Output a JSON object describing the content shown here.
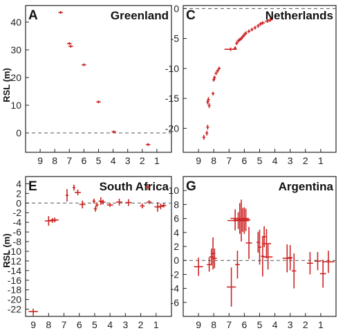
{
  "chart_data": [
    {
      "type": "scatter",
      "letter": "A",
      "title": "Greenland",
      "ylabel": "RSL (m)",
      "xlim": [
        10,
        0
      ],
      "ylim": [
        -7,
        46
      ],
      "xticks": [
        9,
        8,
        7,
        6,
        5,
        4,
        3,
        2,
        1
      ],
      "xtick_labels": [
        "9",
        "8",
        "7",
        "6",
        "5",
        "4",
        "3",
        "2",
        "1"
      ],
      "yticks": [
        0,
        10,
        20,
        30,
        40
      ],
      "ytick_labels": [
        "0",
        "10",
        "20",
        "30",
        "40"
      ],
      "show_xlabels": true,
      "zero_line": true,
      "points": [
        {
          "x": 7.6,
          "y": 43.5,
          "dx": 0.15,
          "dy": 0.3
        },
        {
          "x": 7.0,
          "y": 32.3,
          "dx": 0.15,
          "dy": 0.5
        },
        {
          "x": 6.9,
          "y": 31.3,
          "dx": 0.15,
          "dy": 0.5
        },
        {
          "x": 6.0,
          "y": 24.6,
          "dx": 0.15,
          "dy": 0.4
        },
        {
          "x": 5.0,
          "y": 11.2,
          "dx": 0.15,
          "dy": 0.4
        },
        {
          "x": 3.95,
          "y": 0.4,
          "dx": 0.15,
          "dy": 0.4
        },
        {
          "x": 1.6,
          "y": -4.2,
          "dx": 0.15,
          "dy": 0.4
        }
      ]
    },
    {
      "type": "scatter",
      "letter": "C",
      "title": "Netherlands",
      "ylabel": "",
      "xlim": [
        10,
        0
      ],
      "ylim": [
        -24,
        0.5
      ],
      "xticks": [
        9,
        8,
        7,
        6,
        5,
        4,
        3,
        2,
        1
      ],
      "xtick_labels": [
        "9",
        "8",
        "7",
        "6",
        "5",
        "4",
        "3",
        "2",
        "1"
      ],
      "yticks": [
        0,
        -5,
        -10,
        -15,
        -20
      ],
      "ytick_labels": [
        "0",
        "-5",
        "-10",
        "-15",
        "-20"
      ],
      "show_xlabels": true,
      "zero_line": true,
      "points": [
        {
          "x": 8.65,
          "y": -21.5,
          "dx": 0.1,
          "dy": 0.4
        },
        {
          "x": 8.45,
          "y": -20.8,
          "dx": 0.08,
          "dy": 0.4
        },
        {
          "x": 8.4,
          "y": -19.8,
          "dx": 0.08,
          "dy": 0.4
        },
        {
          "x": 8.3,
          "y": -16.2,
          "dx": 0.08,
          "dy": 0.4
        },
        {
          "x": 8.35,
          "y": -15.2,
          "dx": 0.08,
          "dy": 0.4
        },
        {
          "x": 8.4,
          "y": -15.6,
          "dx": 0.08,
          "dy": 0.4
        },
        {
          "x": 8.05,
          "y": -14.2,
          "dx": 0.08,
          "dy": 0.3
        },
        {
          "x": 8.0,
          "y": -11.9,
          "dx": 0.08,
          "dy": 0.3
        },
        {
          "x": 7.95,
          "y": -11.5,
          "dx": 0.08,
          "dy": 0.3
        },
        {
          "x": 7.85,
          "y": -10.8,
          "dx": 0.08,
          "dy": 0.3
        },
        {
          "x": 7.75,
          "y": -10.4,
          "dx": 0.08,
          "dy": 0.3
        },
        {
          "x": 7.65,
          "y": -10.0,
          "dx": 0.08,
          "dy": 0.3
        },
        {
          "x": 6.9,
          "y": -6.8,
          "dx": 0.4,
          "dy": 0.3
        },
        {
          "x": 6.6,
          "y": -6.6,
          "dx": 0.08,
          "dy": 0.3
        },
        {
          "x": 6.5,
          "y": -5.8,
          "dx": 0.1,
          "dy": 0.3
        },
        {
          "x": 6.4,
          "y": -5.4,
          "dx": 0.1,
          "dy": 0.3
        },
        {
          "x": 6.3,
          "y": -5.2,
          "dx": 0.1,
          "dy": 0.3
        },
        {
          "x": 6.2,
          "y": -5.0,
          "dx": 0.1,
          "dy": 0.3
        },
        {
          "x": 6.1,
          "y": -4.7,
          "dx": 0.1,
          "dy": 0.3
        },
        {
          "x": 6.0,
          "y": -4.4,
          "dx": 0.1,
          "dy": 0.3
        },
        {
          "x": 5.9,
          "y": -4.1,
          "dx": 0.1,
          "dy": 0.3
        },
        {
          "x": 5.7,
          "y": -3.8,
          "dx": 0.1,
          "dy": 0.3
        },
        {
          "x": 5.5,
          "y": -3.5,
          "dx": 0.1,
          "dy": 0.3
        },
        {
          "x": 5.3,
          "y": -3.2,
          "dx": 0.1,
          "dy": 0.3
        },
        {
          "x": 5.1,
          "y": -2.9,
          "dx": 0.1,
          "dy": 0.3
        },
        {
          "x": 4.95,
          "y": -2.6,
          "dx": 0.1,
          "dy": 0.3
        },
        {
          "x": 4.8,
          "y": -2.4,
          "dx": 0.15,
          "dy": 0.3
        },
        {
          "x": 4.5,
          "y": -2.1,
          "dx": 0.15,
          "dy": 0.3
        },
        {
          "x": 4.3,
          "y": -1.9,
          "dx": 0.15,
          "dy": 0.3
        }
      ]
    },
    {
      "type": "scatter",
      "letter": "E",
      "title": "South Africa",
      "ylabel": "RSL (m)",
      "xlim": [
        9.5,
        0
      ],
      "ylim": [
        -23.5,
        5.5
      ],
      "xticks": [
        9,
        8,
        7,
        6,
        5,
        4,
        3,
        2,
        1
      ],
      "xtick_labels": [
        "9",
        "8",
        "7",
        "6",
        "5",
        "4",
        "3",
        "2",
        "1"
      ],
      "yticks": [
        4,
        2,
        0,
        -2,
        -4,
        -6,
        -8,
        -10,
        -12,
        -14,
        -16,
        -18,
        -20,
        -22
      ],
      "ytick_labels": [
        "4",
        "2",
        "0",
        "-2",
        "-4",
        "-6",
        "-8",
        "-10",
        "-12",
        "-14",
        "-16",
        "-18",
        "-20",
        "-22"
      ],
      "show_xlabels": true,
      "zero_line": true,
      "points": [
        {
          "x": 9.0,
          "y": -22.5,
          "dx": 0.3,
          "dy": 0.6
        },
        {
          "x": 8.0,
          "y": -3.7,
          "dx": 0.25,
          "dy": 1.0
        },
        {
          "x": 7.75,
          "y": -3.6,
          "dx": 0.25,
          "dy": 0.5
        },
        {
          "x": 7.6,
          "y": -3.5,
          "dx": 0.25,
          "dy": 0.5
        },
        {
          "x": 6.8,
          "y": 1.6,
          "dx": 0.08,
          "dy": 1.3
        },
        {
          "x": 6.35,
          "y": 3.2,
          "dx": 0.08,
          "dy": 0.6
        },
        {
          "x": 6.1,
          "y": 2.2,
          "dx": 0.2,
          "dy": 0.6
        },
        {
          "x": 5.8,
          "y": -0.3,
          "dx": 0.2,
          "dy": 0.8
        },
        {
          "x": 5.05,
          "y": 0.4,
          "dx": 0.1,
          "dy": 0.5
        },
        {
          "x": 4.95,
          "y": -1.2,
          "dx": 0.1,
          "dy": 0.6
        },
        {
          "x": 4.85,
          "y": -0.4,
          "dx": 0.1,
          "dy": 0.5
        },
        {
          "x": 4.6,
          "y": 0.4,
          "dx": 0.15,
          "dy": 0.8
        },
        {
          "x": 4.45,
          "y": 0.2,
          "dx": 0.15,
          "dy": 0.5
        },
        {
          "x": 4.0,
          "y": -0.4,
          "dx": 0.2,
          "dy": 0.4
        },
        {
          "x": 3.4,
          "y": 0.2,
          "dx": 0.2,
          "dy": 0.7
        },
        {
          "x": 2.8,
          "y": 0.1,
          "dx": 0.2,
          "dy": 0.7
        },
        {
          "x": 1.9,
          "y": -0.6,
          "dx": 0.15,
          "dy": 0.5
        },
        {
          "x": 1.55,
          "y": 3.3,
          "dx": 0.15,
          "dy": 0.6
        },
        {
          "x": 1.45,
          "y": 0.2,
          "dx": 0.15,
          "dy": 0.4
        },
        {
          "x": 0.9,
          "y": -0.8,
          "dx": 0.2,
          "dy": 1.0
        },
        {
          "x": 0.7,
          "y": -0.7,
          "dx": 0.2,
          "dy": 0.6
        },
        {
          "x": 0.5,
          "y": -0.5,
          "dx": 0.15,
          "dy": 0.4
        }
      ]
    },
    {
      "type": "scatter",
      "letter": "G",
      "title": "Argentina",
      "ylabel": "",
      "xlim": [
        10,
        0
      ],
      "ylim": [
        -8,
        12
      ],
      "xticks": [
        9,
        8,
        7,
        6,
        5,
        4,
        3,
        2,
        1
      ],
      "xtick_labels": [
        "9",
        "8",
        "7",
        "6",
        "5",
        "4",
        "3",
        "2",
        "1"
      ],
      "yticks": [
        10,
        8,
        6,
        4,
        2,
        0,
        -2,
        -4,
        -6
      ],
      "ytick_labels": [
        "10",
        "8",
        "6",
        "4",
        "2",
        "0",
        "-2",
        "-4",
        "-6"
      ],
      "show_xlabels": true,
      "zero_line": true,
      "points": [
        {
          "x": 9.0,
          "y": -0.9,
          "dx": 0.3,
          "dy": 1.3
        },
        {
          "x": 8.3,
          "y": -0.6,
          "dx": 0.15,
          "dy": 1.0
        },
        {
          "x": 8.15,
          "y": 0.5,
          "dx": 0.15,
          "dy": 1.2
        },
        {
          "x": 8.05,
          "y": 1.0,
          "dx": 0.15,
          "dy": 2.3
        },
        {
          "x": 7.95,
          "y": 0.3,
          "dx": 0.15,
          "dy": 1.4
        },
        {
          "x": 6.85,
          "y": -3.8,
          "dx": 0.3,
          "dy": 2.8
        },
        {
          "x": 6.6,
          "y": 5.8,
          "dx": 0.1,
          "dy": 1.5
        },
        {
          "x": 6.4,
          "y": 5.7,
          "dx": 0.7,
          "dy": 1.2
        },
        {
          "x": 6.3,
          "y": 6.0,
          "dx": 0.6,
          "dy": 2.2
        },
        {
          "x": 6.2,
          "y": 5.7,
          "dx": 0.5,
          "dy": 3.0
        },
        {
          "x": 6.1,
          "y": 5.8,
          "dx": 0.4,
          "dy": 1.7
        },
        {
          "x": 6.0,
          "y": 5.7,
          "dx": 0.3,
          "dy": 1.9
        },
        {
          "x": 5.9,
          "y": 5.8,
          "dx": 0.3,
          "dy": 1.6
        },
        {
          "x": 6.45,
          "y": -0.6,
          "dx": 0.15,
          "dy": 2.0
        },
        {
          "x": 5.7,
          "y": 2.5,
          "dx": 0.2,
          "dy": 2.3
        },
        {
          "x": 5.1,
          "y": 2.6,
          "dx": 0.1,
          "dy": 1.5
        },
        {
          "x": 5.0,
          "y": 1.9,
          "dx": 0.12,
          "dy": 2.5
        },
        {
          "x": 4.8,
          "y": 0.6,
          "dx": 0.12,
          "dy": 2.9
        },
        {
          "x": 4.7,
          "y": 3.4,
          "dx": 0.12,
          "dy": 1.5
        },
        {
          "x": 4.55,
          "y": 2.4,
          "dx": 0.3,
          "dy": 2.1
        },
        {
          "x": 4.45,
          "y": 0.5,
          "dx": 0.3,
          "dy": 1.8
        },
        {
          "x": 3.2,
          "y": 0.3,
          "dx": 0.3,
          "dy": 2.0
        },
        {
          "x": 3.0,
          "y": 0.4,
          "dx": 0.15,
          "dy": 1.8
        },
        {
          "x": 2.75,
          "y": -1.5,
          "dx": 0.15,
          "dy": 2.5
        },
        {
          "x": 1.7,
          "y": -0.4,
          "dx": 0.2,
          "dy": 1.6
        },
        {
          "x": 1.2,
          "y": -0.1,
          "dx": 0.2,
          "dy": 1.3
        },
        {
          "x": 0.85,
          "y": -1.9,
          "dx": 0.2,
          "dy": 2.0
        },
        {
          "x": 0.5,
          "y": -0.2,
          "dx": 0.4,
          "dy": 1.6
        }
      ]
    }
  ],
  "colors": {
    "marker": "#cc2222",
    "axis": "#222222",
    "zero": "#555555"
  }
}
